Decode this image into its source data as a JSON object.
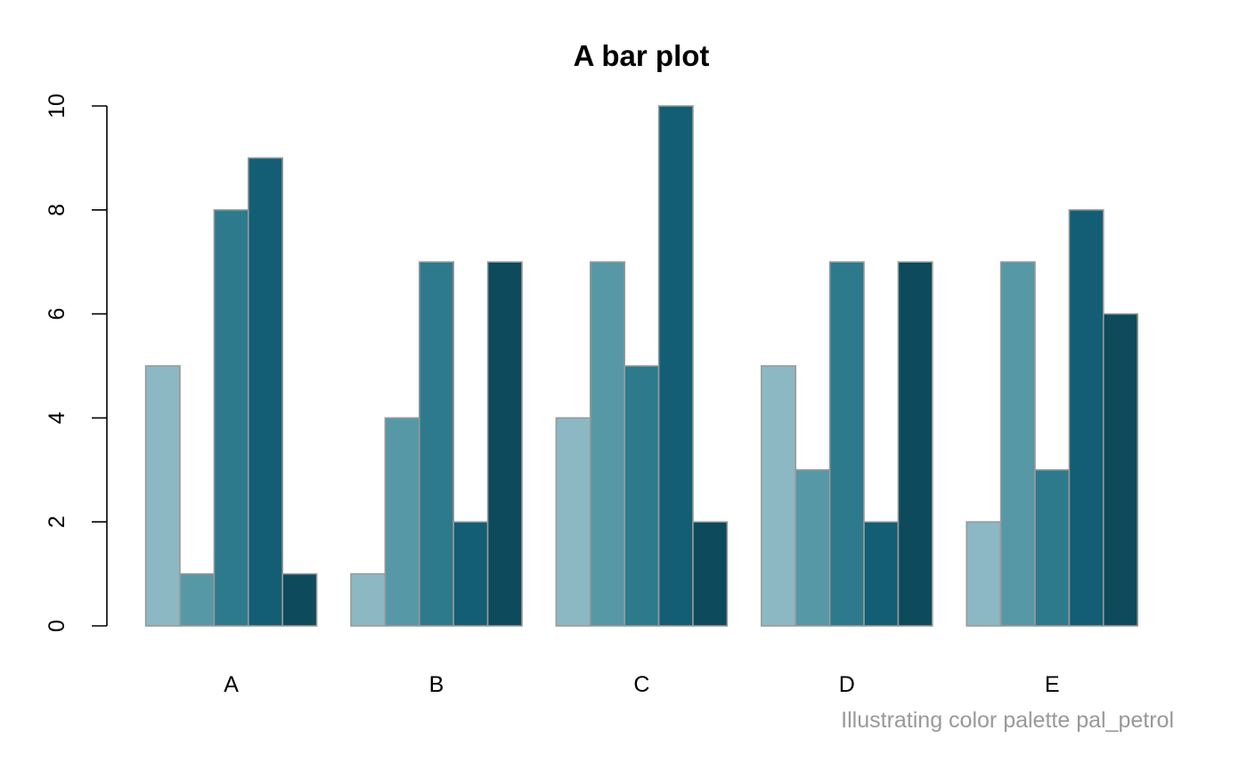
{
  "chart_data": {
    "type": "bar",
    "title": "A bar plot",
    "xlabel": "",
    "ylabel": "",
    "categories": [
      "A",
      "B",
      "C",
      "D",
      "E"
    ],
    "ylim": [
      0,
      10
    ],
    "yticks": [
      "0",
      "2",
      "4",
      "6",
      "8",
      "10"
    ],
    "grid": false,
    "legend": "none",
    "bar_border_color": "#999999",
    "series": [
      {
        "color": "#8CB8C4",
        "values": [
          5,
          1,
          4,
          5,
          2
        ]
      },
      {
        "color": "#5698A6",
        "values": [
          1,
          4,
          7,
          3,
          7
        ]
      },
      {
        "color": "#2D7A8C",
        "values": [
          8,
          7,
          5,
          7,
          3
        ]
      },
      {
        "color": "#135E74",
        "values": [
          9,
          2,
          10,
          2,
          8
        ]
      },
      {
        "color": "#0C4A5C",
        "values": [
          1,
          7,
          2,
          7,
          6
        ]
      }
    ],
    "annotation": "Illustrating color palette pal_petrol",
    "annotation_color": "#999999"
  }
}
